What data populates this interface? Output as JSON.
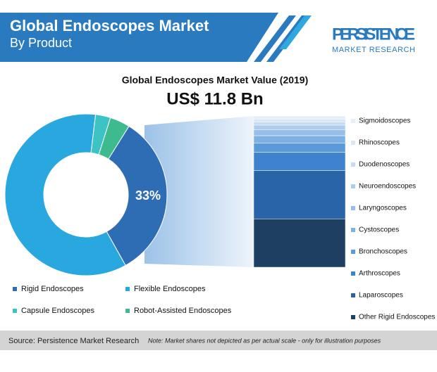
{
  "header": {
    "title": "Global Endoscopes Market",
    "subtitle": "By Product"
  },
  "logo": {
    "name": "PERSISTENCE",
    "tagline": "MARKET RESEARCH"
  },
  "chart_data": {
    "type": "donut",
    "title": "Global Endoscopes Market Value (2019)",
    "subtitle": "US$ 11.8 Bn",
    "series": [
      {
        "name": "Rigid Endoscopes",
        "color": "#2e6db4",
        "values": [
          33
        ],
        "value_labels": [
          "33%"
        ]
      },
      {
        "name": "Flexible Endoscopes",
        "color": "#29a8e0",
        "values": [
          60
        ]
      },
      {
        "name": "Capsule Endoscopes",
        "color": "#3cc4c4",
        "values": [
          3
        ]
      },
      {
        "name": "Robot-Assisted Endoscopes",
        "color": "#3dbb8f",
        "values": [
          4
        ]
      }
    ],
    "breakdown": {
      "type": "stacked-bar",
      "categories": [
        "Sigmoidoscopes",
        "Rhinoscopes",
        "Duodenoscopes",
        "Neuroendoscopes",
        "Laryngoscopes",
        "Cystoscopes",
        "Bronchoscopes",
        "Arthroscopes",
        "Laparoscopes",
        "Other Rigid Endoscopes"
      ],
      "values": [
        2,
        2,
        2,
        3,
        4,
        5,
        6,
        12,
        32,
        32
      ],
      "colors": [
        "#e6eef8",
        "#d9e6f5",
        "#c6dbf1",
        "#aecdee",
        "#96bfe9",
        "#7fb0e3",
        "#5b9ad8",
        "#3f83cf",
        "#2a64a8",
        "#1e3f62"
      ]
    }
  },
  "footer": {
    "source": "Source: Persistence Market Research",
    "note": "Note: Market shares not depicted as per actual scale - only for illustration purposes"
  }
}
